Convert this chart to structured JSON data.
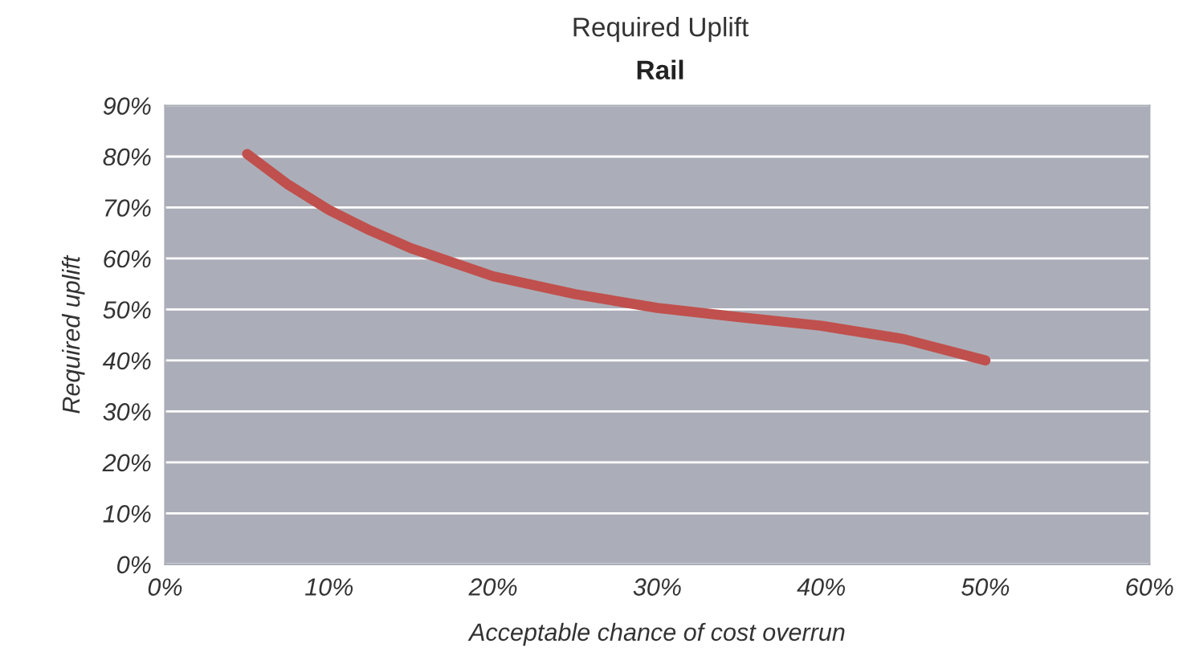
{
  "chart_data": {
    "type": "line",
    "title": "Required Uplift",
    "subtitle": "Rail",
    "xlabel": "Acceptable chance of cost overrun",
    "ylabel": "Required uplift",
    "x": [
      5,
      7.5,
      10,
      12.5,
      15,
      20,
      25,
      30,
      35,
      40,
      45,
      50
    ],
    "series": [
      {
        "color": "#c0504d",
        "values": [
          80.5,
          74.5,
          69.5,
          65.5,
          62,
          56.5,
          53,
          50.3,
          48.5,
          46.8,
          44.2,
          40
        ]
      }
    ],
    "xlim": [
      0,
      60
    ],
    "xticks": [
      {
        "value": 0,
        "label": "0%"
      },
      {
        "value": 10,
        "label": "10%"
      },
      {
        "value": 20,
        "label": "20%"
      },
      {
        "value": 30,
        "label": "30%"
      },
      {
        "value": 40,
        "label": "40%"
      },
      {
        "value": 50,
        "label": "50%"
      },
      {
        "value": 60,
        "label": "60%"
      }
    ],
    "ylim": [
      0,
      90
    ],
    "yticks": [
      {
        "value": 0,
        "label": "0%"
      },
      {
        "value": 10,
        "label": "10%"
      },
      {
        "value": 20,
        "label": "20%"
      },
      {
        "value": 30,
        "label": "30%"
      },
      {
        "value": 40,
        "label": "40%"
      },
      {
        "value": 50,
        "label": "50%"
      },
      {
        "value": 60,
        "label": "60%"
      },
      {
        "value": 70,
        "label": "70%"
      },
      {
        "value": 80,
        "label": "80%"
      },
      {
        "value": 90,
        "label": "90%"
      }
    ],
    "grid": "y",
    "marker": "none",
    "line_style": "solid",
    "legend": false
  }
}
